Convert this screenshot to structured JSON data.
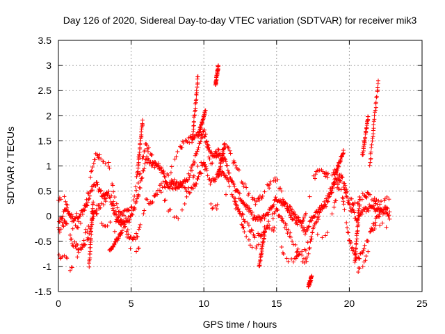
{
  "chart_data": {
    "type": "scatter",
    "title": "Day 126 of 2020, Sidereal Day-to-day VTEC variation (SDTVAR) for receiver mik3",
    "xlabel": "GPS time / hours",
    "ylabel": "SDTVAR / TECUs",
    "xlim": [
      0,
      25
    ],
    "ylim": [
      -1.5,
      3.5
    ],
    "xticks": [
      "0",
      "5",
      "10",
      "15",
      "20",
      "25"
    ],
    "yticks": [
      "-1.5",
      "-1",
      "-0.5",
      "0",
      "0.5",
      "1",
      "1.5",
      "2",
      "2.5",
      "3",
      "3.5"
    ],
    "grid": true,
    "marker": "plus",
    "series_color": "#ff0000",
    "trend": {
      "x": [
        0,
        0.5,
        1,
        1.5,
        2,
        2.3,
        2.6,
        3,
        3.5,
        4,
        4.5,
        5,
        5.5,
        6,
        6.5,
        7,
        7.5,
        8,
        8.5,
        9,
        9.5,
        10,
        10.5,
        11,
        11.5,
        12,
        12.5,
        13,
        13.5,
        14,
        14.5,
        15,
        15.5,
        16,
        16.5,
        17,
        17.5,
        18,
        18.5,
        19,
        19.5,
        20,
        20.5,
        21,
        21.5,
        22,
        22.5,
        22.8
      ],
      "y": [
        -0.2,
        0.0,
        -0.3,
        -0.2,
        0.1,
        0.5,
        0.7,
        0.6,
        0.7,
        0.1,
        0.0,
        -0.1,
        0.2,
        0.9,
        0.8,
        0.9,
        0.7,
        0.8,
        0.9,
        1.0,
        1.3,
        1.6,
        1.0,
        1.0,
        0.9,
        0.6,
        0.5,
        0.4,
        0.2,
        0.1,
        0.1,
        0.2,
        0.0,
        -0.1,
        -0.2,
        -0.3,
        0.2,
        0.4,
        0.5,
        0.8,
        0.7,
        0.0,
        -0.3,
        -0.1,
        0.1,
        0.2,
        0.3,
        0.2
      ]
    },
    "bursts": [
      {
        "x0": 2.1,
        "x1": 2.4,
        "y0": -1.0,
        "y1": 0.3
      },
      {
        "x0": 3.5,
        "x1": 4.4,
        "y0": -0.7,
        "y1": -0.3
      },
      {
        "x0": 5.4,
        "x1": 5.8,
        "y0": 0.8,
        "y1": 1.9
      },
      {
        "x0": 9.2,
        "x1": 9.6,
        "y0": 1.5,
        "y1": 2.8
      },
      {
        "x0": 9.6,
        "x1": 10.1,
        "y0": 1.6,
        "y1": 2.1
      },
      {
        "x0": 10.8,
        "x1": 11.0,
        "y0": 2.6,
        "y1": 3.0
      },
      {
        "x0": 11.0,
        "x1": 11.4,
        "y0": 0.8,
        "y1": 1.4
      },
      {
        "x0": 13.8,
        "x1": 14.2,
        "y0": -1.0,
        "y1": -0.3
      },
      {
        "x0": 17.2,
        "x1": 17.4,
        "y0": -1.4,
        "y1": -1.2
      },
      {
        "x0": 20.4,
        "x1": 20.7,
        "y0": -0.9,
        "y1": 0.3
      },
      {
        "x0": 20.9,
        "x1": 21.3,
        "y0": 1.2,
        "y1": 2.0
      },
      {
        "x0": 21.4,
        "x1": 22.0,
        "y0": 1.0,
        "y1": 2.7
      },
      {
        "x0": 19.0,
        "x1": 19.6,
        "y0": 0.8,
        "y1": 1.3
      }
    ]
  }
}
